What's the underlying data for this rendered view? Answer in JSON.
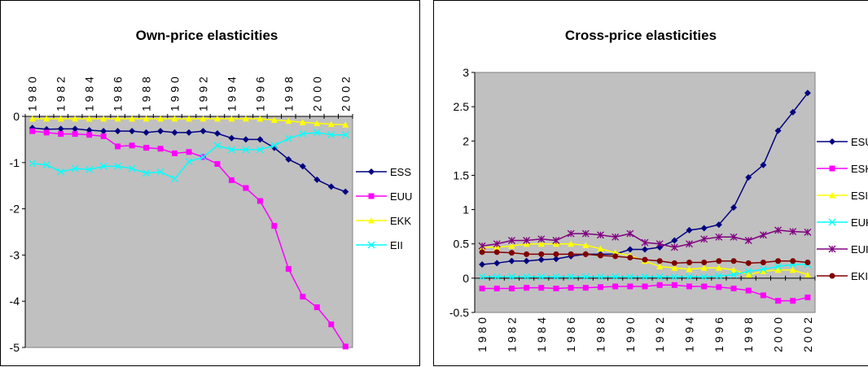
{
  "chart_data": [
    {
      "type": "line",
      "title": "Own-price elasticities",
      "xlabel": "",
      "ylabel": "",
      "ylim": [
        -5,
        0
      ],
      "yticks": [
        0,
        -1,
        -2,
        -3,
        -4,
        -5
      ],
      "x_axis_position": "top",
      "x_tick_label_orientation": "vertical",
      "grid": false,
      "plot_background": "#c0c0c0",
      "legend_position": "right",
      "x": [
        1980,
        1981,
        1982,
        1983,
        1984,
        1985,
        1986,
        1987,
        1988,
        1989,
        1990,
        1991,
        1992,
        1993,
        1994,
        1995,
        1996,
        1997,
        1998,
        1999,
        2000,
        2001,
        2002
      ],
      "x_tick_labels": [
        "1980",
        "1982",
        "1984",
        "1986",
        "1988",
        "1990",
        "1992",
        "1994",
        "1996",
        "1998",
        "2000",
        "2002"
      ],
      "series": [
        {
          "name": "ESS",
          "color": "#000080",
          "marker": "diamond",
          "values": [
            -0.25,
            -0.28,
            -0.27,
            -0.27,
            -0.3,
            -0.32,
            -0.32,
            -0.32,
            -0.35,
            -0.32,
            -0.35,
            -0.35,
            -0.32,
            -0.37,
            -0.47,
            -0.5,
            -0.5,
            -0.68,
            -0.93,
            -1.08,
            -1.37,
            -1.52,
            -1.63
          ]
        },
        {
          "name": "EUU",
          "color": "#ff00ff",
          "marker": "square",
          "values": [
            -0.32,
            -0.35,
            -0.38,
            -0.38,
            -0.4,
            -0.43,
            -0.65,
            -0.63,
            -0.68,
            -0.7,
            -0.8,
            -0.77,
            -0.88,
            -1.03,
            -1.38,
            -1.55,
            -1.83,
            -2.37,
            -3.3,
            -3.9,
            -4.13,
            -4.5,
            -4.98
          ]
        },
        {
          "name": "EKK",
          "color": "#ffff00",
          "marker": "triangle",
          "values": [
            -0.05,
            -0.05,
            -0.05,
            -0.05,
            -0.05,
            -0.05,
            -0.05,
            -0.05,
            -0.05,
            -0.05,
            -0.05,
            -0.05,
            -0.05,
            -0.05,
            -0.05,
            -0.05,
            -0.05,
            -0.08,
            -0.1,
            -0.13,
            -0.15,
            -0.17,
            -0.18
          ]
        },
        {
          "name": "EII",
          "color": "#00ffff",
          "marker": "asterisk",
          "values": [
            -1.02,
            -1.05,
            -1.2,
            -1.13,
            -1.15,
            -1.08,
            -1.08,
            -1.13,
            -1.23,
            -1.2,
            -1.35,
            -0.98,
            -0.88,
            -0.63,
            -0.72,
            -0.72,
            -0.72,
            -0.63,
            -0.48,
            -0.38,
            -0.35,
            -0.4,
            -0.4
          ]
        }
      ]
    },
    {
      "type": "line",
      "title": "Cross-price elasticities",
      "xlabel": "",
      "ylabel": "",
      "ylim": [
        -0.5,
        3
      ],
      "yticks": [
        3,
        2.5,
        2,
        1.5,
        1,
        0.5,
        0,
        -0.5
      ],
      "x_axis_position": "bottom",
      "x_tick_label_orientation": "vertical",
      "grid": false,
      "plot_background": "#c0c0c0",
      "legend_position": "right",
      "x": [
        1980,
        1981,
        1982,
        1983,
        1984,
        1985,
        1986,
        1987,
        1988,
        1989,
        1990,
        1991,
        1992,
        1993,
        1994,
        1995,
        1996,
        1997,
        1998,
        1999,
        2000,
        2001,
        2002
      ],
      "x_tick_labels": [
        "1980",
        "1982",
        "1984",
        "1986",
        "1988",
        "1990",
        "1992",
        "1994",
        "1996",
        "1998",
        "2000",
        "2002"
      ],
      "series": [
        {
          "name": "ESU",
          "color": "#000080",
          "marker": "diamond",
          "values": [
            0.2,
            0.22,
            0.25,
            0.25,
            0.27,
            0.28,
            0.32,
            0.35,
            0.35,
            0.35,
            0.42,
            0.42,
            0.45,
            0.55,
            0.7,
            0.73,
            0.78,
            1.03,
            1.47,
            1.65,
            2.15,
            2.42,
            2.7
          ]
        },
        {
          "name": "ESK",
          "color": "#ff00ff",
          "marker": "square",
          "values": [
            -0.15,
            -0.15,
            -0.15,
            -0.14,
            -0.14,
            -0.15,
            -0.14,
            -0.14,
            -0.13,
            -0.12,
            -0.12,
            -0.12,
            -0.1,
            -0.1,
            -0.12,
            -0.12,
            -0.13,
            -0.15,
            -0.18,
            -0.25,
            -0.33,
            -0.33,
            -0.28
          ]
        },
        {
          "name": "ESI",
          "color": "#ffff00",
          "marker": "triangle",
          "values": [
            0.45,
            0.45,
            0.47,
            0.5,
            0.5,
            0.5,
            0.5,
            0.48,
            0.43,
            0.37,
            0.33,
            0.25,
            0.17,
            0.15,
            0.13,
            0.15,
            0.15,
            0.12,
            0.05,
            0.1,
            0.12,
            0.12,
            0.05
          ]
        },
        {
          "name": "EUK",
          "color": "#00ffff",
          "marker": "asterisk",
          "values": [
            0.02,
            0.02,
            0.02,
            0.02,
            0.02,
            0.02,
            0.02,
            0.02,
            0.02,
            0.02,
            0.02,
            0.02,
            0.02,
            0.02,
            0.02,
            0.02,
            0.03,
            0.05,
            0.1,
            0.13,
            0.17,
            0.2,
            0.2
          ]
        },
        {
          "name": "EUI",
          "color": "#800080",
          "marker": "star",
          "values": [
            0.47,
            0.5,
            0.55,
            0.55,
            0.57,
            0.55,
            0.65,
            0.65,
            0.63,
            0.6,
            0.65,
            0.52,
            0.5,
            0.45,
            0.5,
            0.57,
            0.6,
            0.6,
            0.55,
            0.63,
            0.7,
            0.68,
            0.67
          ]
        },
        {
          "name": "EKI",
          "color": "#800000",
          "marker": "circle",
          "values": [
            0.38,
            0.38,
            0.37,
            0.35,
            0.35,
            0.35,
            0.35,
            0.35,
            0.33,
            0.32,
            0.3,
            0.27,
            0.25,
            0.22,
            0.23,
            0.23,
            0.25,
            0.25,
            0.22,
            0.23,
            0.25,
            0.25,
            0.23
          ]
        }
      ]
    }
  ]
}
